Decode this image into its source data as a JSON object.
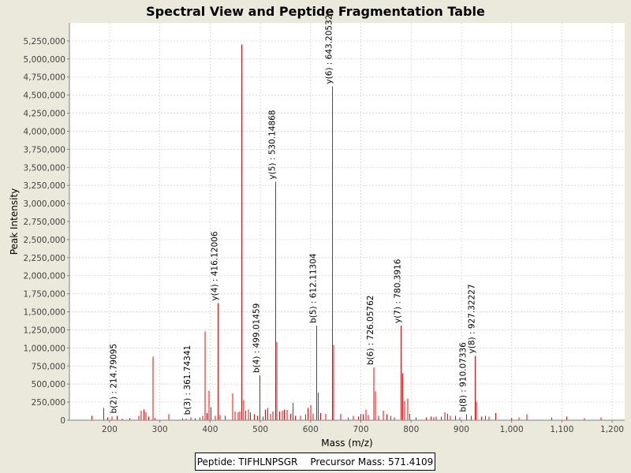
{
  "chart_data": {
    "type": "bar",
    "title": "Spectral View and Peptide Fragmentation Table",
    "xlabel": "Mass (m/z)",
    "ylabel": "Peak Intensity",
    "xlim": [
      120,
      1225
    ],
    "ylim": [
      0,
      5500000
    ],
    "x_ticks": [
      200,
      300,
      400,
      500,
      600,
      700,
      800,
      900,
      1000,
      1100,
      1200
    ],
    "x_tick_labels": [
      "200",
      "300",
      "400",
      "500",
      "600",
      "700",
      "800",
      "900",
      "1,000",
      "1,100",
      "1,200"
    ],
    "y_ticks": [
      0,
      250000,
      500000,
      750000,
      1000000,
      1250000,
      1500000,
      1750000,
      2000000,
      2250000,
      2500000,
      2750000,
      3000000,
      3250000,
      3500000,
      3750000,
      4000000,
      4250000,
      4500000,
      4750000,
      5000000,
      5250000
    ],
    "y_tick_labels": [
      "0",
      "250,000",
      "500,000",
      "750,000",
      "1,000,000",
      "1,250,000",
      "1,500,000",
      "1,750,000",
      "2,000,000",
      "2,250,000",
      "2,500,000",
      "2,750,000",
      "3,000,000",
      "3,250,000",
      "3,500,000",
      "3,750,000",
      "4,000,000",
      "4,250,000",
      "4,500,000",
      "4,750,000",
      "5,000,000",
      "5,250,000"
    ],
    "grid": true,
    "peak_color": "#ff0000",
    "peaks": [
      [
        165,
        60000
      ],
      [
        188,
        170000
      ],
      [
        196,
        40000
      ],
      [
        205,
        50000
      ],
      [
        214.8,
        60000
      ],
      [
        225,
        20000
      ],
      [
        240,
        25000
      ],
      [
        258,
        60000
      ],
      [
        263,
        130000
      ],
      [
        268,
        150000
      ],
      [
        272,
        110000
      ],
      [
        278,
        50000
      ],
      [
        286,
        880000
      ],
      [
        290,
        30000
      ],
      [
        318,
        80000
      ],
      [
        345,
        25000
      ],
      [
        352,
        20000
      ],
      [
        361.7,
        40000
      ],
      [
        370,
        30000
      ],
      [
        380,
        40000
      ],
      [
        385,
        60000
      ],
      [
        390,
        1230000
      ],
      [
        394,
        100000
      ],
      [
        398,
        410000
      ],
      [
        402,
        180000
      ],
      [
        410,
        60000
      ],
      [
        416.1,
        1620000
      ],
      [
        420,
        70000
      ],
      [
        430,
        60000
      ],
      [
        445,
        370000
      ],
      [
        450,
        120000
      ],
      [
        456,
        110000
      ],
      [
        459,
        120000
      ],
      [
        463,
        5200000
      ],
      [
        467,
        280000
      ],
      [
        471,
        130000
      ],
      [
        476,
        150000
      ],
      [
        480,
        110000
      ],
      [
        488,
        80000
      ],
      [
        494,
        60000
      ],
      [
        499,
        620000
      ],
      [
        505,
        50000
      ],
      [
        510,
        150000
      ],
      [
        515,
        170000
      ],
      [
        520,
        90000
      ],
      [
        525,
        120000
      ],
      [
        530.1,
        3300000
      ],
      [
        533,
        1080000
      ],
      [
        538,
        120000
      ],
      [
        544,
        130000
      ],
      [
        548,
        150000
      ],
      [
        553,
        140000
      ],
      [
        560,
        90000
      ],
      [
        565,
        240000
      ],
      [
        570,
        60000
      ],
      [
        580,
        60000
      ],
      [
        590,
        80000
      ],
      [
        595,
        170000
      ],
      [
        600,
        210000
      ],
      [
        605,
        90000
      ],
      [
        612.1,
        1310000
      ],
      [
        615,
        380000
      ],
      [
        620,
        100000
      ],
      [
        630,
        90000
      ],
      [
        643.2,
        4620000
      ],
      [
        646,
        1040000
      ],
      [
        660,
        90000
      ],
      [
        675,
        40000
      ],
      [
        685,
        60000
      ],
      [
        695,
        50000
      ],
      [
        700,
        90000
      ],
      [
        705,
        80000
      ],
      [
        710,
        150000
      ],
      [
        715,
        70000
      ],
      [
        726.1,
        730000
      ],
      [
        729,
        400000
      ],
      [
        735,
        60000
      ],
      [
        745,
        130000
      ],
      [
        752,
        80000
      ],
      [
        760,
        60000
      ],
      [
        767,
        40000
      ],
      [
        780.4,
        1310000
      ],
      [
        783,
        650000
      ],
      [
        787,
        260000
      ],
      [
        793,
        300000
      ],
      [
        797,
        90000
      ],
      [
        810,
        40000
      ],
      [
        830,
        40000
      ],
      [
        840,
        50000
      ],
      [
        845,
        40000
      ],
      [
        850,
        50000
      ],
      [
        860,
        50000
      ],
      [
        867,
        110000
      ],
      [
        873,
        90000
      ],
      [
        878,
        60000
      ],
      [
        888,
        60000
      ],
      [
        897,
        40000
      ],
      [
        910.1,
        80000
      ],
      [
        920,
        60000
      ],
      [
        927.3,
        890000
      ],
      [
        930,
        250000
      ],
      [
        940,
        50000
      ],
      [
        948,
        60000
      ],
      [
        955,
        50000
      ],
      [
        968,
        100000
      ],
      [
        1000,
        30000
      ],
      [
        1015,
        40000
      ],
      [
        1030,
        80000
      ],
      [
        1080,
        40000
      ],
      [
        1110,
        50000
      ],
      [
        1145,
        30000
      ],
      [
        1178,
        40000
      ]
    ],
    "annotations": [
      {
        "text": "b(2) : 214.79095",
        "x": 214.8,
        "y": 60000
      },
      {
        "text": "b(3) : 361.74341",
        "x": 361.7,
        "y": 40000
      },
      {
        "text": "y(4) : 416.12006",
        "x": 416.1,
        "y": 1620000
      },
      {
        "text": "b(4) : 499.01459",
        "x": 499,
        "y": 620000
      },
      {
        "text": "y(5) : 530.14868",
        "x": 530.1,
        "y": 3300000
      },
      {
        "text": "b(5) : 612.11304",
        "x": 612.1,
        "y": 1310000
      },
      {
        "text": "y(6) : 643.20532",
        "x": 643.2,
        "y": 4620000
      },
      {
        "text": "b(6) : 726.05762",
        "x": 726.1,
        "y": 730000
      },
      {
        "text": "y(7) : 780.3916",
        "x": 780.4,
        "y": 1310000
      },
      {
        "text": "b(8) : 910.07336",
        "x": 910.1,
        "y": 80000
      },
      {
        "text": "y(8) : 927.32227",
        "x": 927.3,
        "y": 890000
      }
    ]
  },
  "legend": {
    "peptide": "Peptide: TIFHLNPSGR",
    "precursor": "Precursor Mass: 571.4109"
  }
}
